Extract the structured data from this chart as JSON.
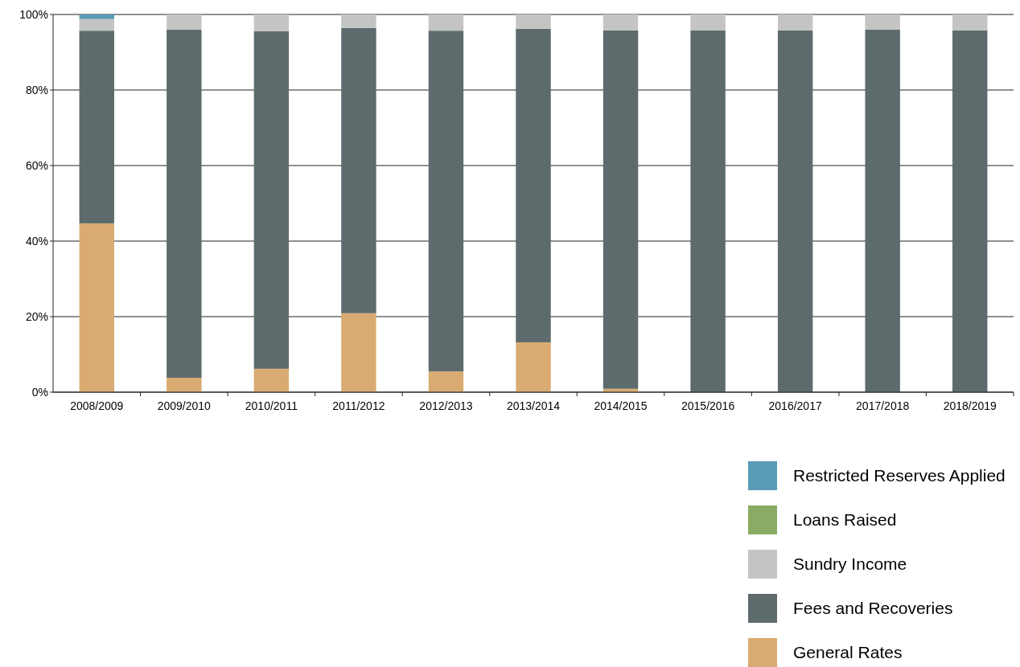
{
  "chart_data": {
    "type": "bar",
    "stacked": true,
    "categories": [
      "2008/2009",
      "2009/2010",
      "2010/2011",
      "2011/2012",
      "2012/2013",
      "2013/2014",
      "2014/2015",
      "2015/2016",
      "2016/2017",
      "2017/2018",
      "2018/2019"
    ],
    "series": [
      {
        "name": "General Rates",
        "color": "#d9ab72",
        "values": [
          44.7,
          3.8,
          6.2,
          20.9,
          5.5,
          13.2,
          0.9,
          0,
          0,
          0,
          0
        ]
      },
      {
        "name": "Fees and Recoveries",
        "color": "#5d6b6d",
        "values": [
          51,
          92.2,
          89.4,
          75.5,
          90.2,
          83,
          94.9,
          95.8,
          95.8,
          96,
          95.8
        ]
      },
      {
        "name": "Sundry Income",
        "color": "#c4c4c2",
        "values": [
          3.1,
          4,
          4.4,
          3.6,
          4.3,
          3.8,
          4.2,
          4.2,
          4.2,
          4,
          4.2
        ]
      },
      {
        "name": "Loans Raised",
        "color": "#8aab64",
        "values": [
          0,
          0,
          0,
          0,
          0,
          0,
          0,
          0,
          0,
          0,
          0
        ]
      },
      {
        "name": "Restricted Reserves Applied",
        "color": "#5a9bb5",
        "values": [
          1.2,
          0,
          0,
          0,
          0,
          0,
          0,
          0,
          0,
          0,
          0
        ]
      }
    ],
    "ylim": [
      0,
      100
    ],
    "yticks": [
      {
        "value": 0,
        "label": "0%"
      },
      {
        "value": 20,
        "label": "20%"
      },
      {
        "value": 40,
        "label": "40%"
      },
      {
        "value": 60,
        "label": "60%"
      },
      {
        "value": 80,
        "label": "80%"
      },
      {
        "value": 100,
        "label": "100%"
      }
    ],
    "grid": "y",
    "legend": "bottom right"
  }
}
